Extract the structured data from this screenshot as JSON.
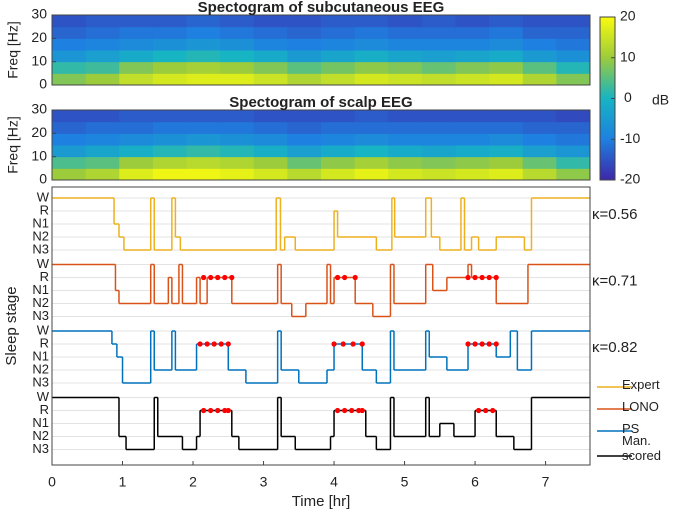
{
  "chart_data": [
    {
      "type": "heatmap",
      "title": "Spectogram of subcutaneous EEG",
      "ylabel": "Freq [Hz]",
      "xlim": [
        0,
        7.63
      ],
      "ylim": [
        0,
        30
      ],
      "yticks": [
        0,
        10,
        20,
        30
      ],
      "z": [
        [
          8,
          10,
          14,
          16,
          17,
          17,
          15,
          12,
          14,
          16,
          15,
          14,
          15,
          16,
          12,
          8
        ],
        [
          2,
          3,
          8,
          10,
          11,
          10,
          8,
          5,
          7,
          9,
          8,
          6,
          8,
          9,
          5,
          1
        ],
        [
          -6,
          -4,
          -2,
          0,
          1,
          0,
          -2,
          -5,
          -3,
          -1,
          -3,
          -4,
          -3,
          -2,
          -5,
          -7
        ],
        [
          -10,
          -9,
          -8,
          -7,
          -6,
          -7,
          -9,
          -10,
          -9,
          -8,
          -9,
          -9,
          -9,
          -8,
          -10,
          -11
        ],
        [
          -13,
          -12,
          -11,
          -11,
          -10,
          -11,
          -12,
          -13,
          -12,
          -11,
          -12,
          -12,
          -12,
          -11,
          -13,
          -13
        ],
        [
          -15,
          -14,
          -14,
          -14,
          -13,
          -14,
          -15,
          -15,
          -14,
          -14,
          -15,
          -14,
          -15,
          -14,
          -15,
          -15
        ]
      ],
      "colorbar": {
        "clim": [
          -20,
          20
        ],
        "ticks": [
          20,
          10,
          0,
          -10,
          -20
        ],
        "label": "dB"
      }
    },
    {
      "type": "heatmap",
      "title": "Spectogram of scalp EEG",
      "ylabel": "Freq [Hz]",
      "xlim": [
        0,
        7.63
      ],
      "ylim": [
        0,
        30
      ],
      "yticks": [
        0,
        10,
        20,
        30
      ],
      "z": [
        [
          10,
          12,
          17,
          19,
          19,
          18,
          16,
          13,
          16,
          18,
          16,
          15,
          16,
          17,
          13,
          9
        ],
        [
          4,
          5,
          10,
          12,
          13,
          12,
          10,
          6,
          9,
          11,
          9,
          8,
          9,
          10,
          6,
          2
        ],
        [
          -5,
          -3,
          -1,
          1,
          2,
          1,
          -1,
          -4,
          -2,
          0,
          -2,
          -3,
          -2,
          -1,
          -4,
          -6
        ],
        [
          -10,
          -9,
          -8,
          -7,
          -6,
          -7,
          -8,
          -10,
          -9,
          -8,
          -9,
          -9,
          -9,
          -8,
          -10,
          -11
        ],
        [
          -13,
          -12,
          -12,
          -11,
          -11,
          -11,
          -12,
          -13,
          -12,
          -12,
          -12,
          -12,
          -12,
          -12,
          -13,
          -13
        ],
        [
          -15,
          -15,
          -14,
          -14,
          -14,
          -14,
          -15,
          -15,
          -15,
          -14,
          -15,
          -15,
          -15,
          -15,
          -15,
          -16
        ]
      ]
    },
    {
      "type": "step",
      "ylabel": "Sleep stage",
      "xlabel": "Time [hr]",
      "xlim": [
        0,
        7.63
      ],
      "xticks": [
        0,
        1,
        2,
        3,
        4,
        5,
        6,
        7
      ],
      "stage_labels": [
        "W",
        "R",
        "N1",
        "N2",
        "N3"
      ],
      "rem_color": "#ff0000",
      "series": [
        {
          "name": "Expert",
          "color": "#edb120",
          "annotation": "κ=0.56",
          "x": [
            0,
            0.88,
            0.95,
            1.02,
            1.4,
            1.45,
            1.7,
            1.75,
            1.82,
            3.18,
            3.24,
            3.3,
            3.45,
            4.0,
            4.05,
            4.6,
            4.82,
            4.86,
            5.3,
            5.38,
            5.5,
            5.8,
            5.85,
            5.95,
            6.05,
            6.3,
            6.7,
            6.8,
            7.63
          ],
          "values": [
            0,
            2,
            3,
            4,
            0,
            4,
            0,
            3,
            4,
            0,
            4,
            3,
            4,
            1,
            3,
            4,
            0,
            3,
            0,
            3,
            4,
            0,
            4,
            3,
            4,
            3,
            4,
            0,
            0
          ]
        },
        {
          "name": "LONO",
          "color": "#d95319",
          "annotation": "κ=0.71",
          "x": [
            0,
            0.9,
            0.95,
            1.4,
            1.45,
            1.65,
            1.7,
            1.8,
            1.85,
            2.05,
            2.1,
            2.2,
            2.55,
            3.2,
            3.25,
            3.4,
            3.6,
            3.9,
            3.95,
            4.0,
            4.3,
            4.55,
            4.8,
            4.85,
            5.3,
            5.4,
            5.6,
            5.9,
            5.95,
            6.3,
            6.75,
            7.63
          ],
          "values": [
            0,
            2,
            3,
            0,
            3,
            1,
            3,
            0,
            3,
            1,
            3,
            1,
            3,
            0,
            3,
            4,
            3,
            0,
            3,
            1,
            3,
            4,
            0,
            3,
            0,
            2,
            1,
            0,
            1,
            3,
            0,
            0
          ],
          "rem_x": [
            2.15,
            2.25,
            2.35,
            2.45,
            2.55,
            4.05,
            4.15,
            4.3,
            5.9,
            6.0,
            6.1,
            6.2,
            6.3
          ]
        },
        {
          "name": "PS",
          "color": "#0072bd",
          "annotation": "κ=0.82",
          "x": [
            0,
            0.85,
            0.92,
            1.0,
            1.4,
            1.45,
            1.7,
            1.75,
            2.05,
            2.5,
            2.75,
            3.2,
            3.25,
            3.5,
            3.9,
            4.0,
            4.4,
            4.6,
            4.8,
            4.85,
            5.3,
            5.35,
            5.6,
            5.9,
            6.3,
            6.5,
            6.6,
            6.8,
            7.63
          ],
          "values": [
            0,
            1,
            2,
            4,
            0,
            3,
            0,
            3,
            1,
            3,
            4,
            0,
            3,
            4,
            3,
            1,
            3,
            4,
            0,
            3,
            0,
            2,
            3,
            1,
            2,
            0,
            3,
            0,
            0
          ],
          "rem_x": [
            2.1,
            2.2,
            2.3,
            2.4,
            2.5,
            4.0,
            4.13,
            4.27,
            4.4,
            5.9,
            6.0,
            6.1,
            6.2,
            6.3
          ]
        },
        {
          "name": "Man. scored",
          "color": "#000000",
          "x": [
            0,
            0.95,
            1.05,
            1.45,
            1.5,
            1.85,
            2.05,
            2.1,
            2.55,
            2.65,
            3.2,
            3.25,
            3.45,
            3.95,
            4.0,
            4.45,
            4.6,
            4.8,
            4.85,
            5.3,
            5.35,
            5.5,
            5.7,
            6.0,
            6.3,
            6.55,
            6.8,
            7.63
          ],
          "values": [
            0,
            3,
            4,
            0,
            3,
            4,
            3,
            1,
            3,
            4,
            0,
            3,
            4,
            3,
            1,
            3,
            4,
            0,
            3,
            0,
            3,
            2,
            3,
            1,
            3,
            4,
            0,
            0
          ],
          "rem_x": [
            2.15,
            2.25,
            2.35,
            2.45,
            2.5,
            4.05,
            4.15,
            4.25,
            4.35,
            4.4,
            6.05,
            6.15,
            6.25
          ]
        }
      ]
    }
  ]
}
